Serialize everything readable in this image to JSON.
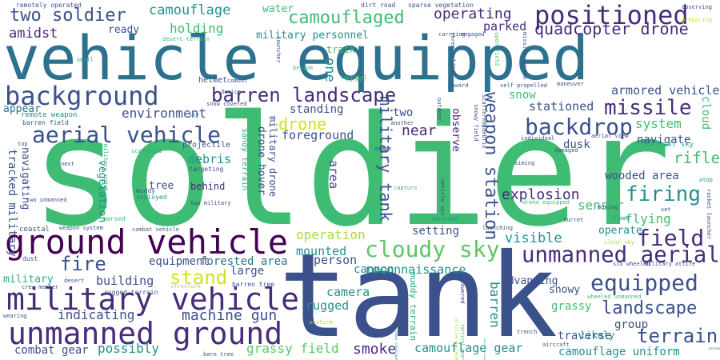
{
  "words": [
    "soldier",
    "tank",
    "vehicle equipped",
    "ground vehicle",
    "military vehicle",
    "unmanned ground",
    "background",
    "barren landscape",
    "positioned",
    "aerial vehicle",
    "backdrop",
    "cloudy sky",
    "unmanned aerial",
    "equipped",
    "field",
    "rifle",
    "missile",
    "firing",
    "landscape",
    "terrain",
    "camouflaged",
    "camouflage",
    "two soldier",
    "drone",
    "fire",
    "stand",
    "military tank",
    "weapon station",
    "quadcopter drone",
    "operating",
    "smoke",
    "explosion",
    "environment",
    "armored vehicle",
    "near",
    "holding",
    "amidst",
    "water",
    "military personnel",
    "parked",
    "stationed",
    "system",
    "navigate",
    "sensor",
    "flying",
    "visible",
    "setting",
    "operation",
    "mounted",
    "person",
    "reconnaissance",
    "equipment",
    "forested area",
    "large",
    "cannon",
    "building",
    "indicating",
    "machine gun",
    "camera",
    "rugged",
    "grassy field",
    "camouflage gear",
    "camouflage uniform",
    "combat gear",
    "possibly",
    "advancing",
    "grassy",
    "snowy",
    "traverse",
    "group",
    "barren",
    "likely",
    "military",
    "appear",
    "foreground",
    "standing",
    "debris",
    "tree",
    "behind",
    "vegetation",
    "tracked military",
    "navigating",
    "area",
    "observe",
    "drone hover",
    "military drone",
    "sandy terrain",
    "muddy terrain",
    "one",
    "two",
    "track",
    "ready",
    "snow",
    "wooded area",
    "dusk",
    "operate",
    "cloud",
    "overcast sky",
    "remote weapon",
    "barren field",
    "helmet",
    "device",
    "projectile",
    "targeting",
    "muddy",
    "deployed",
    "combat vehicle",
    "coastal",
    "weapon system",
    "crew member",
    "dust",
    "desert",
    "rugged terrain",
    "marsed",
    "barren tree",
    "bare tree",
    "structure",
    "wearing",
    "uniform",
    "remotely operated",
    "dirt road",
    "sparse vegetation",
    "observing",
    "preparing",
    "carrying",
    "engaged",
    "desert terrain",
    "launcher",
    "beside",
    "tactical",
    "forest",
    "outdoor",
    "another",
    "image",
    "capture",
    "vehicle uav",
    "snowy landscape",
    "tactical gear",
    "desert landscape",
    "artillery piece",
    "trench",
    "aircraft",
    "toward",
    "self propelled",
    "maneuver",
    "individual",
    "aerial view",
    "damaged",
    "drone equipped",
    "scattered",
    "aiming",
    "moving",
    "flame",
    "clear sky",
    "turret",
    "six wheeled",
    "military attire",
    "rocket launcher",
    "atop",
    "set",
    "across",
    "top",
    "next",
    "wheeled unmanned",
    "launching",
    "attached",
    "small",
    "military robot",
    "two military",
    "two unmanned",
    "snow covered",
    "combat",
    "sky",
    "open field",
    "missile system",
    "scattered debris",
    "snowy field",
    "three soldier",
    "powered"
  ]
}
